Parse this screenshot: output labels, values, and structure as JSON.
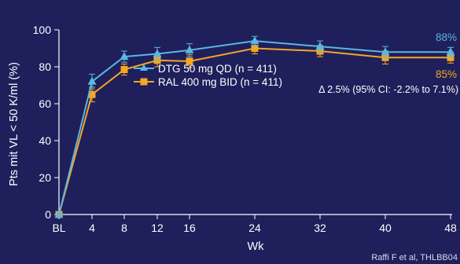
{
  "chart_data": {
    "type": "line",
    "xlabel": "Wk",
    "ylabel": "Pts mit VL < 50 K/ml (%)",
    "x": [
      "BL",
      "4",
      "8",
      "12",
      "16",
      "24",
      "32",
      "40",
      "48"
    ],
    "ylim": [
      0,
      100
    ],
    "yticks": [
      0,
      20,
      40,
      60,
      80,
      100
    ],
    "grid": false,
    "legend_position": "center-left",
    "series": [
      {
        "name": "DTG 50 mg QD (n = 411)",
        "color": "#5bb6e0",
        "marker": "triangle",
        "values": [
          0,
          72,
          85.5,
          87,
          89,
          94,
          91,
          88,
          88
        ],
        "error": [
          0,
          4,
          3,
          3.5,
          3.5,
          2.5,
          3,
          3,
          2.5
        ],
        "end_label": "88%"
      },
      {
        "name": "RAL 400 mg BID (n = 411)",
        "color": "#f5a623",
        "marker": "square",
        "values": [
          0,
          65,
          78.5,
          83.5,
          83,
          90,
          88.5,
          85,
          85
        ],
        "error": [
          0,
          4,
          3,
          3.5,
          3.5,
          3,
          3,
          3.5,
          3
        ],
        "end_label": "85%"
      }
    ],
    "annotations": [
      "Δ 2.5% (95% CI: -2.2% to 7.1%)"
    ],
    "source": "Raffi F et al, THLBB04"
  }
}
